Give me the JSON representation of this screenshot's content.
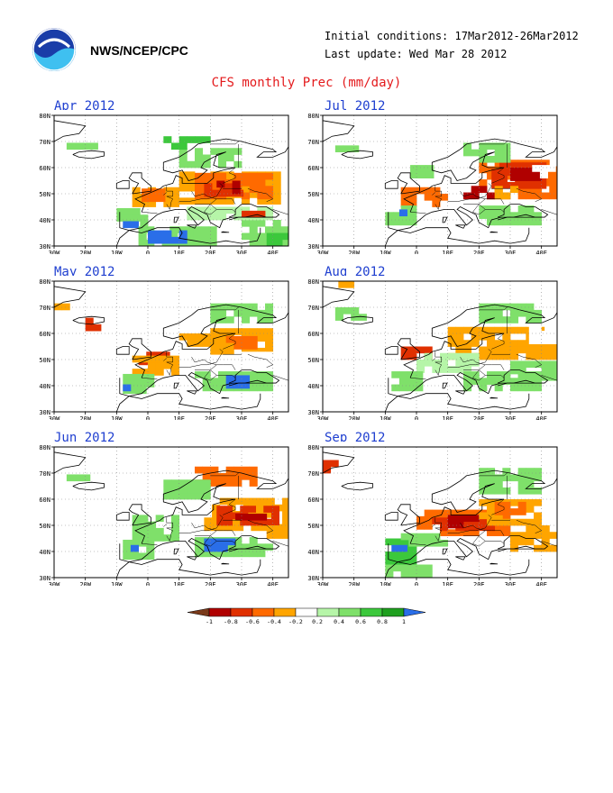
{
  "header": {
    "org": "NWS/NCEP/CPC",
    "initial_conditions": "Initial conditions: 17Mar2012-26Mar2012",
    "last_update": "Last update: Wed Mar 28 2012",
    "title": "CFS monthly Prec (mm/day)"
  },
  "axes": {
    "lat_labels": [
      "80N",
      "70N",
      "60N",
      "50N",
      "40N",
      "30N"
    ],
    "lon_labels": [
      "30W",
      "20W",
      "10W",
      "0",
      "10E",
      "20E",
      "30E",
      "40E"
    ]
  },
  "panels": [
    {
      "title": "Apr 2012"
    },
    {
      "title": "Jul 2012"
    },
    {
      "title": "May 2012"
    },
    {
      "title": "Aug 2012"
    },
    {
      "title": "Jun 2012"
    },
    {
      "title": "Sep 2012"
    }
  ],
  "colorbar": {
    "labels": [
      "-1",
      "-0.8",
      "-0.6",
      "-0.4",
      "-0.2",
      "0.2",
      "0.4",
      "0.6",
      "0.8",
      "1"
    ],
    "colors": [
      "#7a3a1a",
      "#b00000",
      "#e03000",
      "#ff6a00",
      "#ffa500",
      "#ffffff",
      "#b6f5a8",
      "#7fe06a",
      "#3cc83c",
      "#1fa01f",
      "#2a6ee8"
    ]
  },
  "palette": {
    "title": "#e41a1c",
    "panel_title": "#1f3fd0",
    "wet": "#7fe06a",
    "dry": "#ff9a00",
    "very_dry": "#e03000"
  }
}
